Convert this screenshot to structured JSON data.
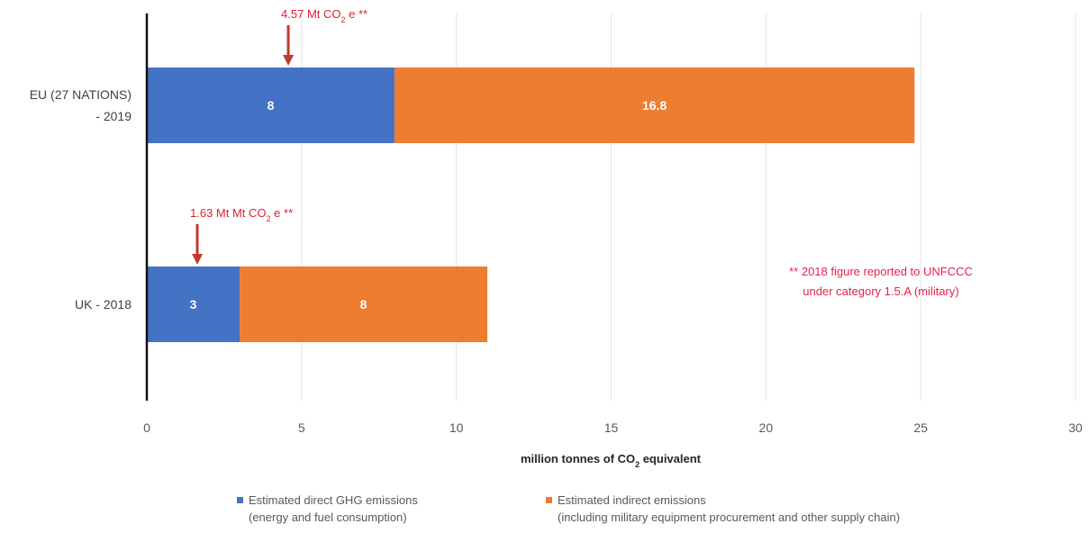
{
  "chart_data": {
    "type": "bar",
    "orientation": "horizontal",
    "stacked": true,
    "categories": [
      "EU (27 NATIONS) - 2019",
      "UK - 2018"
    ],
    "category_lines": [
      [
        "EU (27 NATIONS)",
        "- 2019"
      ],
      [
        "UK - 2018"
      ]
    ],
    "series": [
      {
        "name_lines": [
          "Estimated direct GHG emissions",
          "(energy and fuel consumption)"
        ],
        "values": [
          8,
          3
        ],
        "value_labels": [
          "8",
          "3"
        ],
        "color": "#4472c4"
      },
      {
        "name_lines": [
          "Estimated indirect emissions",
          "(including military equipment procurement and other supply chain)"
        ],
        "values": [
          16.8,
          8
        ],
        "value_labels": [
          "16.8",
          "8"
        ],
        "color": "#ed7d31"
      }
    ],
    "xlim": [
      0,
      30
    ],
    "x_ticks": [
      0,
      5,
      10,
      15,
      20,
      25,
      30
    ],
    "xlabel_main": "million tonnes of CO",
    "xlabel_sub": "2",
    "xlabel_rest": " equivalent",
    "grid": true,
    "legend_position": "bottom",
    "annotations": [
      {
        "category_index": 0,
        "value": 4.57,
        "pre": "4.57 Mt CO",
        "sub": "2",
        "post": " e **"
      },
      {
        "category_index": 1,
        "value": 1.63,
        "pre": "1.63 Mt Mt CO",
        "sub": "2",
        "post": " e **"
      }
    ],
    "footnote_lines": [
      "** 2018 figure reported to UNFCCC",
      "under category 1.5.A (military)"
    ],
    "arrow_color": "#c0392b"
  }
}
